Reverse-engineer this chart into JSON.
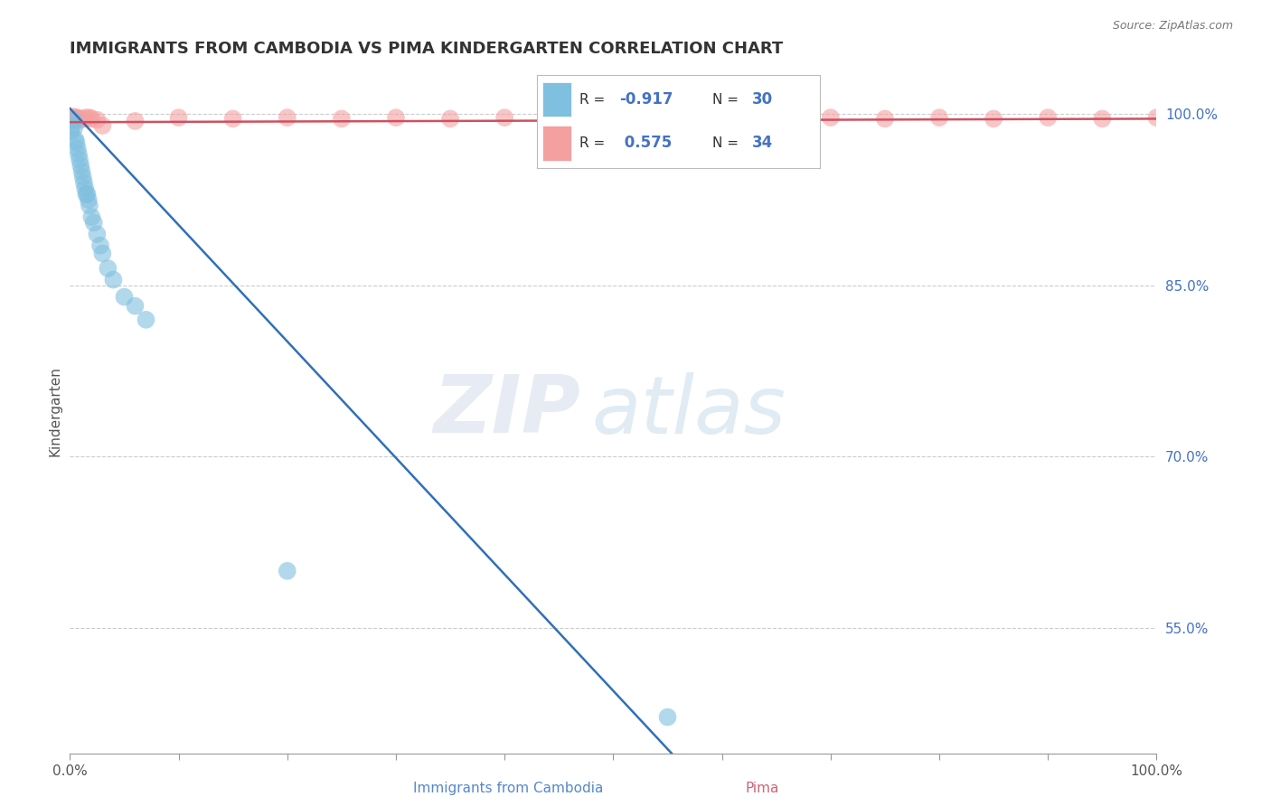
{
  "title": "IMMIGRANTS FROM CAMBODIA VS PIMA KINDERGARTEN CORRELATION CHART",
  "source_text": "Source: ZipAtlas.com",
  "ylabel": "Kindergarten",
  "series1_color": "#7fbfdf",
  "series2_color": "#f4a0a0",
  "trendline1_color": "#3070b8",
  "trendline2_color": "#d05060",
  "xlim": [
    0.0,
    1.0
  ],
  "ylim": [
    0.44,
    1.04
  ],
  "yticks": [
    0.55,
    0.7,
    0.85,
    1.0
  ],
  "ytick_labels": [
    "55.0%",
    "70.0%",
    "85.0%",
    "100.0%"
  ],
  "xticks": [
    0.0,
    0.5,
    1.0
  ],
  "xtick_labels": [
    "0.0%",
    "",
    "100.0%"
  ],
  "xlabel_labels": [
    "Immigrants from Cambodia",
    "Pima"
  ],
  "watermark_zip": "ZIP",
  "watermark_atlas": "atlas",
  "legend_r1": "-0.917",
  "legend_n1": "30",
  "legend_r2": "0.575",
  "legend_n2": "34",
  "blue_points_x": [
    0.001,
    0.002,
    0.003,
    0.004,
    0.005,
    0.006,
    0.007,
    0.008,
    0.009,
    0.01,
    0.011,
    0.012,
    0.013,
    0.014,
    0.015,
    0.016,
    0.017,
    0.018,
    0.02,
    0.022,
    0.025,
    0.028,
    0.03,
    0.035,
    0.04,
    0.05,
    0.06,
    0.07,
    0.2,
    0.55
  ],
  "blue_points_y": [
    0.985,
    0.99,
    0.995,
    0.988,
    0.978,
    0.975,
    0.97,
    0.965,
    0.96,
    0.955,
    0.95,
    0.945,
    0.94,
    0.935,
    0.93,
    0.93,
    0.925,
    0.92,
    0.91,
    0.905,
    0.895,
    0.885,
    0.878,
    0.865,
    0.855,
    0.84,
    0.832,
    0.82,
    0.6,
    0.472
  ],
  "pink_points_x": [
    0.001,
    0.002,
    0.003,
    0.005,
    0.006,
    0.007,
    0.008,
    0.01,
    0.012,
    0.015,
    0.018,
    0.02,
    0.025,
    0.03,
    0.06,
    0.1,
    0.15,
    0.2,
    0.25,
    0.3,
    0.35,
    0.4,
    0.45,
    0.5,
    0.55,
    0.6,
    0.65,
    0.7,
    0.75,
    0.8,
    0.85,
    0.9,
    0.95,
    1.0
  ],
  "pink_points_y": [
    0.995,
    0.998,
    0.996,
    0.997,
    0.996,
    0.997,
    0.996,
    0.995,
    0.996,
    0.997,
    0.997,
    0.996,
    0.995,
    0.99,
    0.994,
    0.997,
    0.996,
    0.997,
    0.996,
    0.997,
    0.996,
    0.997,
    0.996,
    0.997,
    0.996,
    0.997,
    0.996,
    0.997,
    0.996,
    0.997,
    0.996,
    0.997,
    0.996,
    0.997
  ]
}
